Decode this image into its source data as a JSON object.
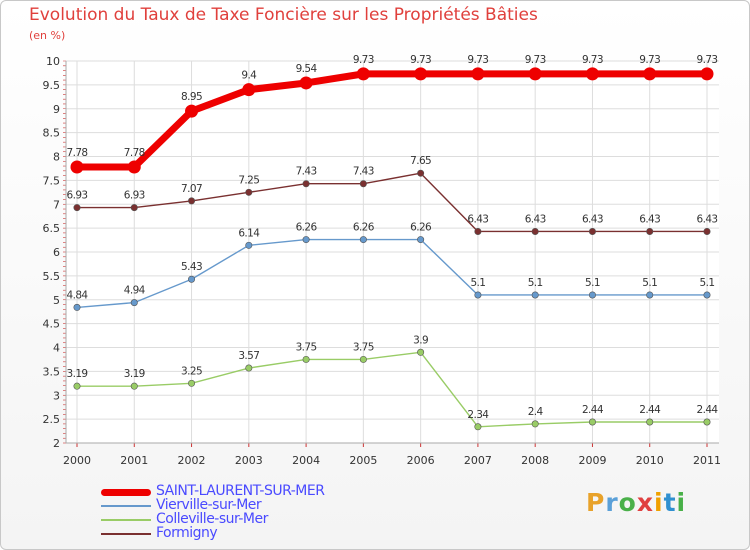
{
  "title": "Evolution du Taux de Taxe Foncière sur les Propriétés Bâties",
  "subtitle": "(en %)",
  "logo": {
    "text": "Proxiti",
    "letter_colors": [
      "#e8a22a",
      "#5aa0d8",
      "#4ab04a",
      "#e04040",
      "#f0a000",
      "#3090d0",
      "#48b048"
    ]
  },
  "chart_data": {
    "type": "line",
    "title": "Evolution du Taux de Taxe Foncière sur les Propriétés Bâties",
    "ylabel": "(en %)",
    "xlabel": "",
    "x": [
      "2000",
      "2001",
      "2002",
      "2003",
      "2004",
      "2005",
      "2006",
      "2007",
      "2008",
      "2009",
      "2010",
      "2011"
    ],
    "ylim": [
      2,
      10
    ],
    "yticks": [
      "2",
      "2.5",
      "3",
      "3.5",
      "4",
      "4.5",
      "5",
      "5.5",
      "6",
      "6.5",
      "7",
      "7.5",
      "8",
      "8.5",
      "9",
      "9.5",
      "10"
    ],
    "grid": true,
    "series": [
      {
        "name": "SAINT-LAURENT-SUR-MER",
        "color": "#ee0000",
        "values": [
          7.78,
          7.78,
          8.95,
          9.4,
          9.54,
          9.73,
          9.73,
          9.73,
          9.73,
          9.73,
          9.73,
          9.73
        ],
        "labels": [
          "7.78",
          "7.78",
          "8.95",
          "9.4",
          "9.54",
          "9.73",
          "9.73",
          "9.73",
          "9.73",
          "9.73",
          "9.73",
          "9.73"
        ]
      },
      {
        "name": "Vierville-sur-Mer",
        "color": "#6699cc",
        "values": [
          4.84,
          4.94,
          5.43,
          6.14,
          6.26,
          6.26,
          6.26,
          5.1,
          5.1,
          5.1,
          5.1,
          5.1
        ],
        "labels": [
          "4.84",
          "4.94",
          "5.43",
          "6.14",
          "6.26",
          "6.26",
          "6.26",
          "5.1",
          "5.1",
          "5.1",
          "5.1",
          "5.1"
        ]
      },
      {
        "name": "Colleville-sur-Mer",
        "color": "#99cc66",
        "values": [
          3.19,
          3.19,
          3.25,
          3.57,
          3.75,
          3.75,
          3.9,
          2.34,
          2.4,
          2.44,
          2.44,
          2.44
        ],
        "labels": [
          "3.19",
          "3.19",
          "3.25",
          "3.57",
          "3.75",
          "3.75",
          "3.9",
          "2.34",
          "2.4",
          "2.44",
          "2.44",
          "2.44"
        ]
      },
      {
        "name": "Formigny",
        "color": "#7a3030",
        "values": [
          6.93,
          6.93,
          7.07,
          7.25,
          7.43,
          7.43,
          7.65,
          6.43,
          6.43,
          6.43,
          6.43,
          6.43
        ],
        "labels": [
          "6.93",
          "6.93",
          "7.07",
          "7.25",
          "7.43",
          "7.43",
          "7.65",
          "6.43",
          "6.43",
          "6.43",
          "6.43",
          "6.43"
        ]
      }
    ],
    "legend": [
      {
        "name": "SAINT-LAURENT-SUR-MER",
        "color": "#ee0000",
        "text_color": "#4a4aff",
        "weight": "heavy"
      },
      {
        "name": "Vierville-sur-Mer",
        "color": "#6699cc",
        "text_color": "#4a4aff",
        "weight": "thin"
      },
      {
        "name": "Colleville-sur-Mer",
        "color": "#99cc66",
        "text_color": "#4a4aff",
        "weight": "thin"
      },
      {
        "name": "Formigny",
        "color": "#7a3030",
        "text_color": "#4a4aff",
        "weight": "thin"
      }
    ],
    "legend_position": "bottom-left"
  }
}
